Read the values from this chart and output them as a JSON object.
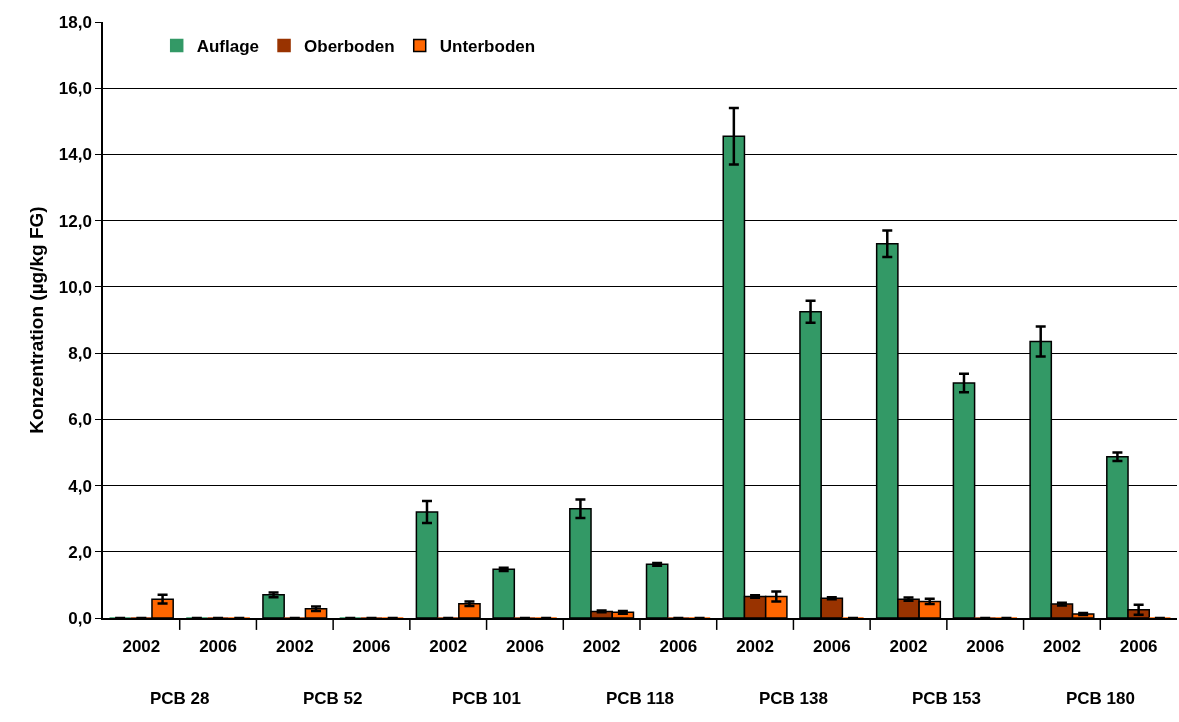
{
  "chart_data": {
    "type": "bar",
    "ylabel": "Konzentration (µg/kg FG)",
    "categories": [
      "2002",
      "2006",
      "2002",
      "2006",
      "2002",
      "2006",
      "2002",
      "2006",
      "2002",
      "2006",
      "2002",
      "2006",
      "2002",
      "2006"
    ],
    "series": [
      {
        "name": "Auflage",
        "color": "#339966",
        "values": [
          0,
          0,
          0.7,
          0,
          3.2,
          1.47,
          3.3,
          1.62,
          14.55,
          9.25,
          11.3,
          7.1,
          8.35,
          4.87
        ],
        "errors": [
          null,
          null,
          0.07,
          null,
          0.33,
          0.05,
          0.28,
          0.04,
          0.85,
          0.33,
          0.4,
          0.28,
          0.45,
          0.13
        ]
      },
      {
        "name": "Oberboden",
        "color": "#993300",
        "values": [
          0,
          0,
          0,
          0,
          0,
          0,
          0.2,
          0,
          0.65,
          0.6,
          0.57,
          0,
          0.42,
          0.25
        ],
        "errors": [
          null,
          null,
          null,
          null,
          null,
          null,
          0.03,
          null,
          0.04,
          0.03,
          0.05,
          null,
          0.04,
          0.15
        ]
      },
      {
        "name": "Unterboden",
        "color": "#ff6600",
        "values": [
          0.57,
          0,
          0.28,
          0,
          0.43,
          0,
          0.17,
          0,
          0.65,
          0,
          0.5,
          0,
          0.12,
          0
        ],
        "errors": [
          0.13,
          null,
          0.07,
          null,
          0.07,
          null,
          0.04,
          null,
          0.15,
          null,
          0.08,
          null,
          0.03,
          null
        ]
      }
    ],
    "annotations": [
      "PCB 28",
      "PCB 52",
      "PCB 101",
      "PCB 118",
      "PCB 138",
      "PCB 153",
      "PCB 180"
    ],
    "ylim": [
      0,
      18
    ],
    "yticks": [
      {
        "value": 0,
        "label": "0,0"
      },
      {
        "value": 2,
        "label": "2,0"
      },
      {
        "value": 4,
        "label": "4,0"
      },
      {
        "value": 6,
        "label": "6,0"
      },
      {
        "value": 8,
        "label": "8,0"
      },
      {
        "value": 10,
        "label": "10,0"
      },
      {
        "value": 12,
        "label": "12,0"
      },
      {
        "value": 14,
        "label": "14,0"
      },
      {
        "value": 16,
        "label": "16,0"
      },
      {
        "value": 18,
        "label": "18,0"
      }
    ],
    "grid": "y",
    "legend": "top left"
  }
}
